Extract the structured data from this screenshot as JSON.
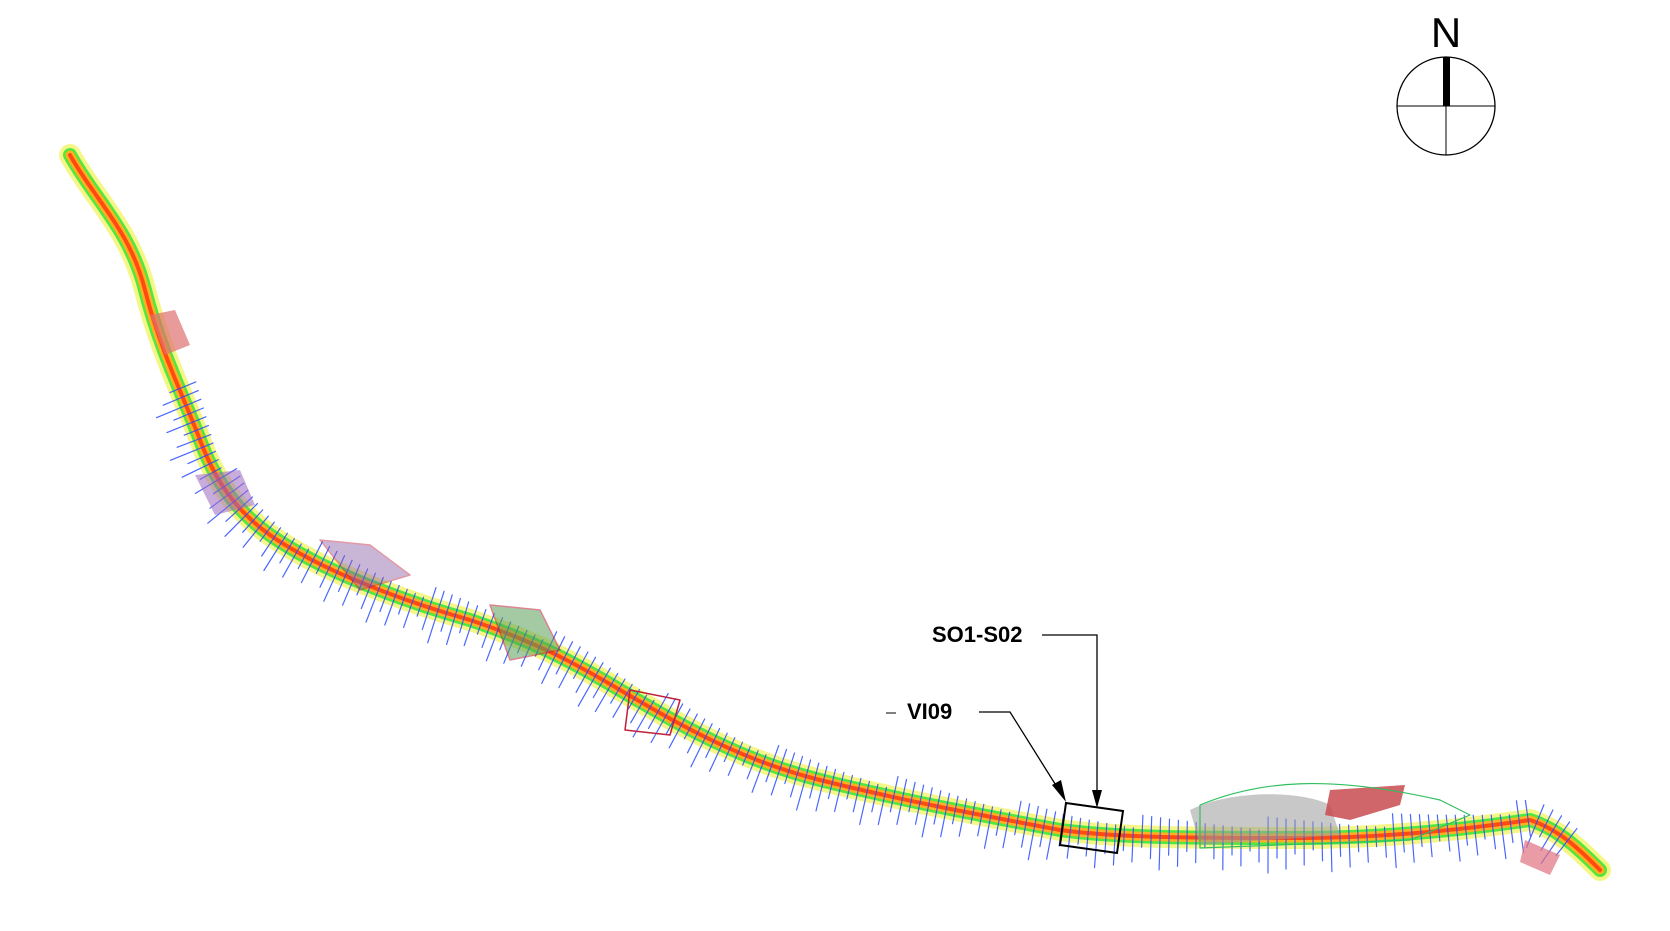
{
  "north_arrow": {
    "letter": "N"
  },
  "callouts": [
    {
      "id": "so1-s02",
      "text": "SO1-S02"
    },
    {
      "id": "vi09",
      "text": "VI09"
    }
  ],
  "colors": {
    "corridor_core": "#ff4a12",
    "corridor_outer": "#ffb020",
    "buffer_yellow": "#f4f46a",
    "vegetation_green": "#33e533",
    "section_blue": "#2a4cff",
    "structure_red": "#c0203a",
    "terrain_gray": "#7a7a7a"
  }
}
